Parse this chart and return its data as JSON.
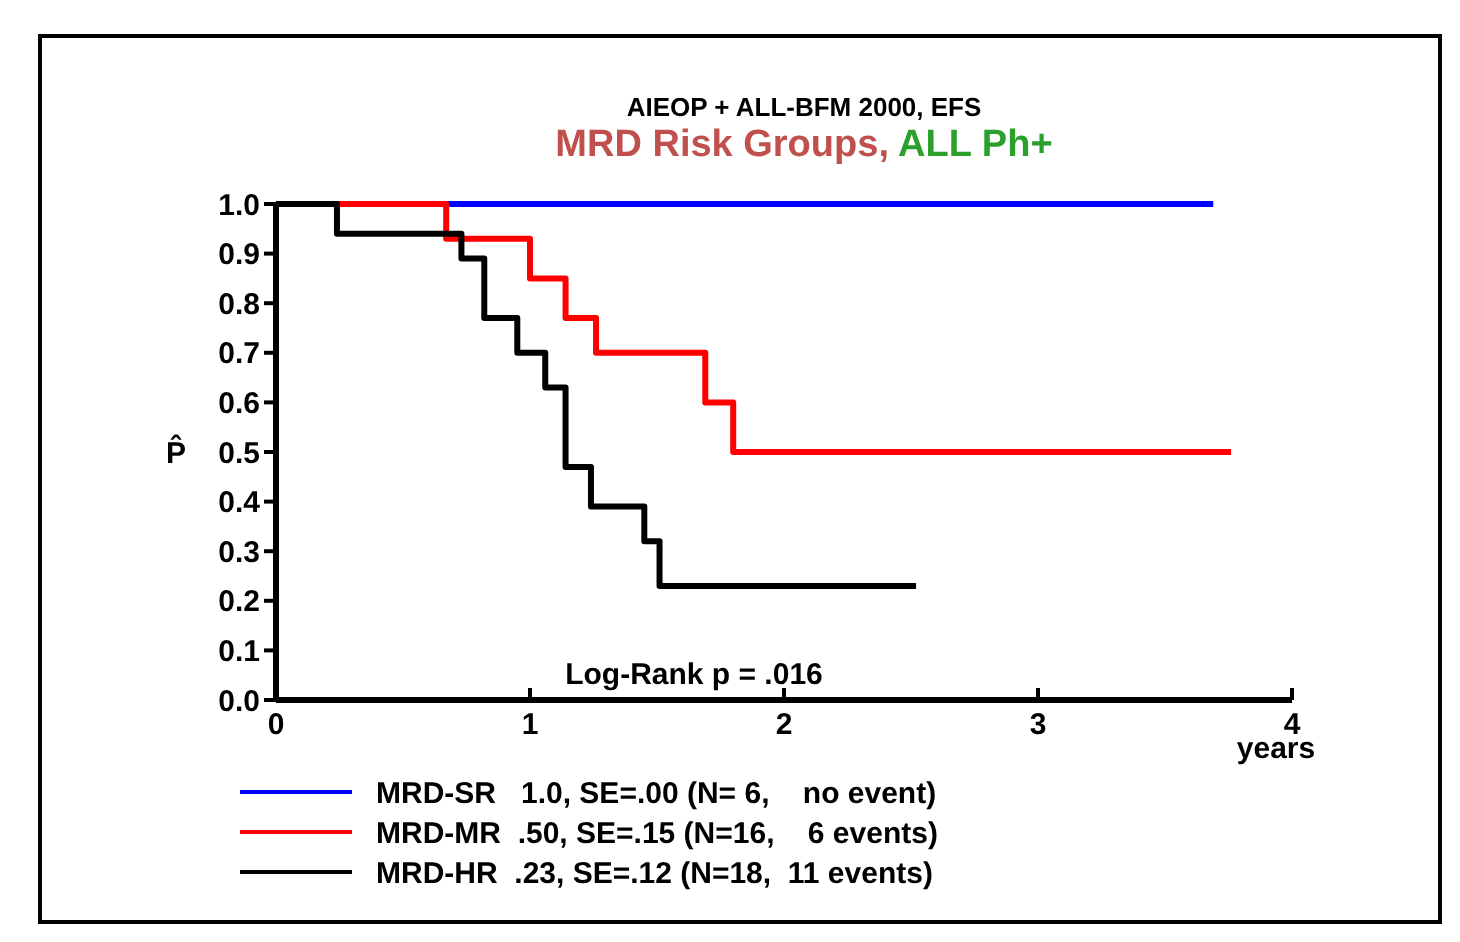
{
  "chart_data": {
    "type": "step",
    "title": "AIEOP + ALL-BFM 2000, EFS",
    "subtitle": "MRD Risk Groups, ALL Ph+",
    "ylabel": "P̂",
    "xlabel": "years",
    "annotations": [
      "Log-Rank p = .016"
    ],
    "xlim": [
      0,
      4
    ],
    "xticks": [
      0,
      1,
      2,
      3,
      4
    ],
    "ylim": [
      0,
      1
    ],
    "yticks": [
      {
        "value": 0,
        "label": "0.0"
      },
      0.1,
      0.2,
      0.3,
      0.4,
      0.5,
      0.6,
      0.7,
      0.8,
      0.9,
      {
        "value": 1,
        "label": "1.0"
      }
    ],
    "legend": "bottom",
    "grid": false,
    "series": [
      {
        "name": "MRD-SR   1.0, SE=.00 (N= 6,    no event)",
        "color": "#0000ff",
        "x": [
          0,
          3.69
        ],
        "values": [
          1,
          1
        ]
      },
      {
        "name": "MRD-MR  .50, SE=.15 (N=16,    6 events)",
        "color": "#ff0000",
        "x": [
          0,
          0.67,
          1.0,
          1.14,
          1.26,
          1.69,
          1.8,
          3.76
        ],
        "values": [
          1,
          0.93,
          0.85,
          0.77,
          0.7,
          0.6,
          0.5,
          0.5
        ]
      },
      {
        "name": "MRD-HR  .23, SE=.12 (N=18,  11 events)",
        "color": "#000000",
        "x": [
          0,
          0.24,
          0.73,
          0.82,
          0.95,
          1.06,
          1.14,
          1.24,
          1.45,
          1.51,
          2.52
        ],
        "values": [
          1,
          0.94,
          0.89,
          0.77,
          0.7,
          0.63,
          0.47,
          0.39,
          0.32,
          0.23,
          0.23
        ]
      }
    ]
  }
}
